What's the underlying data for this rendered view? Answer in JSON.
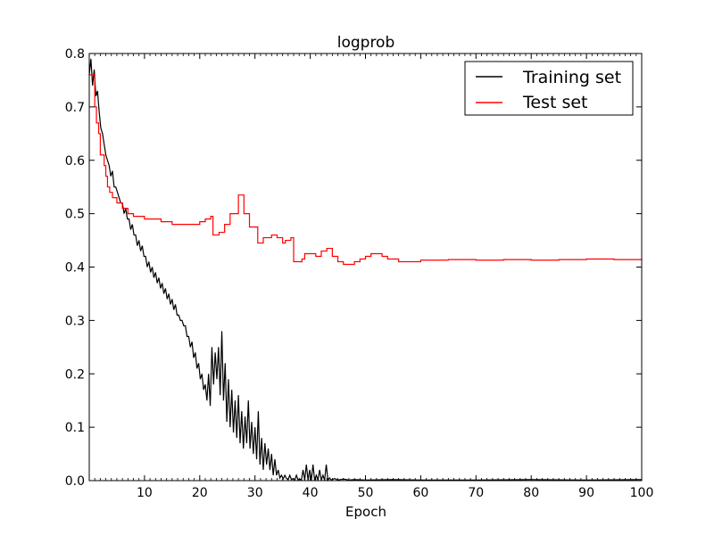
{
  "chart_data": {
    "type": "line",
    "title": "logprob",
    "xlabel": "Epoch",
    "ylabel": "",
    "xlim": [
      0,
      100
    ],
    "ylim": [
      0.0,
      0.8
    ],
    "x_ticks": [
      10,
      20,
      30,
      40,
      50,
      60,
      70,
      80,
      90,
      100
    ],
    "x_tick_labels": [
      "10",
      "20",
      "30",
      "40",
      "50",
      "60",
      "70",
      "80",
      "90",
      "100"
    ],
    "y_ticks": [
      0.0,
      0.1,
      0.2,
      0.3,
      0.4,
      0.5,
      0.6,
      0.7,
      0.8
    ],
    "y_tick_labels": [
      "0.0",
      "0.1",
      "0.2",
      "0.3",
      "0.4",
      "0.5",
      "0.6",
      "0.7",
      "0.8"
    ],
    "grid": false,
    "legend_position": "top-right",
    "series": [
      {
        "name": "Training set",
        "color": "#000000",
        "step": false,
        "points": [
          [
            0.0,
            0.76
          ],
          [
            0.3,
            0.79
          ],
          [
            0.6,
            0.74
          ],
          [
            0.9,
            0.77
          ],
          [
            1.2,
            0.72
          ],
          [
            1.5,
            0.73
          ],
          [
            1.8,
            0.69
          ],
          [
            2.1,
            0.66
          ],
          [
            2.4,
            0.65
          ],
          [
            2.7,
            0.63
          ],
          [
            3.0,
            0.61
          ],
          [
            3.3,
            0.6
          ],
          [
            3.6,
            0.59
          ],
          [
            3.9,
            0.57
          ],
          [
            4.2,
            0.58
          ],
          [
            4.5,
            0.55
          ],
          [
            4.8,
            0.55
          ],
          [
            5.1,
            0.54
          ],
          [
            5.4,
            0.53
          ],
          [
            5.7,
            0.52
          ],
          [
            6.0,
            0.52
          ],
          [
            6.3,
            0.5
          ],
          [
            6.6,
            0.51
          ],
          [
            6.9,
            0.49
          ],
          [
            7.2,
            0.49
          ],
          [
            7.5,
            0.47
          ],
          [
            7.8,
            0.48
          ],
          [
            8.1,
            0.46
          ],
          [
            8.4,
            0.46
          ],
          [
            8.7,
            0.44
          ],
          [
            9.0,
            0.45
          ],
          [
            9.3,
            0.43
          ],
          [
            9.6,
            0.44
          ],
          [
            9.9,
            0.42
          ],
          [
            10.2,
            0.42
          ],
          [
            10.5,
            0.4
          ],
          [
            10.8,
            0.41
          ],
          [
            11.1,
            0.39
          ],
          [
            11.4,
            0.4
          ],
          [
            11.7,
            0.38
          ],
          [
            12.0,
            0.39
          ],
          [
            12.3,
            0.37
          ],
          [
            12.6,
            0.38
          ],
          [
            12.9,
            0.36
          ],
          [
            13.2,
            0.37
          ],
          [
            13.5,
            0.35
          ],
          [
            13.8,
            0.36
          ],
          [
            14.1,
            0.34
          ],
          [
            14.4,
            0.35
          ],
          [
            14.7,
            0.33
          ],
          [
            15.0,
            0.34
          ],
          [
            15.3,
            0.32
          ],
          [
            15.6,
            0.33
          ],
          [
            15.9,
            0.31
          ],
          [
            16.2,
            0.31
          ],
          [
            16.5,
            0.3
          ],
          [
            16.8,
            0.3
          ],
          [
            17.1,
            0.29
          ],
          [
            17.4,
            0.29
          ],
          [
            17.7,
            0.27
          ],
          [
            18.0,
            0.27
          ],
          [
            18.3,
            0.25
          ],
          [
            18.6,
            0.26
          ],
          [
            18.9,
            0.23
          ],
          [
            19.2,
            0.24
          ],
          [
            19.5,
            0.21
          ],
          [
            19.8,
            0.22
          ],
          [
            20.1,
            0.19
          ],
          [
            20.4,
            0.2
          ],
          [
            20.7,
            0.17
          ],
          [
            21.0,
            0.18
          ],
          [
            21.3,
            0.15
          ],
          [
            21.6,
            0.2
          ],
          [
            21.9,
            0.14
          ],
          [
            22.2,
            0.25
          ],
          [
            22.5,
            0.18
          ],
          [
            22.8,
            0.24
          ],
          [
            23.1,
            0.19
          ],
          [
            23.4,
            0.25
          ],
          [
            23.7,
            0.16
          ],
          [
            24.0,
            0.28
          ],
          [
            24.3,
            0.15
          ],
          [
            24.6,
            0.22
          ],
          [
            24.9,
            0.11
          ],
          [
            25.2,
            0.19
          ],
          [
            25.5,
            0.1
          ],
          [
            25.8,
            0.17
          ],
          [
            26.1,
            0.09
          ],
          [
            26.4,
            0.15
          ],
          [
            26.7,
            0.08
          ],
          [
            27.0,
            0.16
          ],
          [
            27.3,
            0.07
          ],
          [
            27.6,
            0.13
          ],
          [
            27.9,
            0.06
          ],
          [
            28.2,
            0.12
          ],
          [
            28.5,
            0.07
          ],
          [
            28.8,
            0.15
          ],
          [
            29.1,
            0.06
          ],
          [
            29.4,
            0.11
          ],
          [
            29.7,
            0.05
          ],
          [
            30.0,
            0.1
          ],
          [
            30.3,
            0.04
          ],
          [
            30.6,
            0.13
          ],
          [
            30.9,
            0.03
          ],
          [
            31.2,
            0.08
          ],
          [
            31.5,
            0.02
          ],
          [
            31.8,
            0.07
          ],
          [
            32.1,
            0.03
          ],
          [
            32.4,
            0.06
          ],
          [
            32.7,
            0.02
          ],
          [
            33.0,
            0.05
          ],
          [
            33.3,
            0.01
          ],
          [
            33.6,
            0.04
          ],
          [
            33.9,
            0.01
          ],
          [
            34.2,
            0.02
          ],
          [
            34.5,
            0.005
          ],
          [
            34.8,
            0.01
          ],
          [
            35.1,
            0.003
          ],
          [
            35.4,
            0.01
          ],
          [
            35.7,
            0.004
          ],
          [
            36.0,
            0.002
          ],
          [
            36.3,
            0.01
          ],
          [
            36.6,
            0.002
          ],
          [
            36.9,
            0.004
          ],
          [
            37.2,
            0.001
          ],
          [
            37.5,
            0.01
          ],
          [
            37.8,
            0.001
          ],
          [
            38.1,
            0.003
          ],
          [
            38.4,
            0.001
          ],
          [
            38.7,
            0.02
          ],
          [
            39.0,
            0.001
          ],
          [
            39.3,
            0.03
          ],
          [
            39.6,
            0.001
          ],
          [
            39.9,
            0.02
          ],
          [
            40.2,
            0.001
          ],
          [
            40.5,
            0.03
          ],
          [
            40.8,
            0.001
          ],
          [
            41.1,
            0.01
          ],
          [
            41.4,
            0.001
          ],
          [
            41.7,
            0.02
          ],
          [
            42.0,
            0.001
          ],
          [
            42.3,
            0.01
          ],
          [
            42.6,
            0.001
          ],
          [
            42.9,
            0.03
          ],
          [
            43.2,
            0.001
          ],
          [
            43.5,
            0.005
          ],
          [
            43.8,
            0.001
          ],
          [
            44.4,
            0.004
          ],
          [
            45.0,
            0.001
          ],
          [
            46.0,
            0.003
          ],
          [
            47.0,
            0.001
          ],
          [
            48.0,
            0.002
          ],
          [
            50.0,
            0.001
          ],
          [
            55.0,
            0.002
          ],
          [
            60.0,
            0.001
          ],
          [
            70.0,
            0.001
          ],
          [
            80.0,
            0.002
          ],
          [
            90.0,
            0.001
          ],
          [
            100.0,
            0.002
          ]
        ]
      },
      {
        "name": "Test set",
        "color": "#ff0000",
        "step": true,
        "points": [
          [
            0.0,
            0.76
          ],
          [
            1.0,
            0.7
          ],
          [
            1.3,
            0.67
          ],
          [
            1.7,
            0.65
          ],
          [
            2.0,
            0.61
          ],
          [
            2.7,
            0.59
          ],
          [
            3.0,
            0.57
          ],
          [
            3.3,
            0.55
          ],
          [
            3.7,
            0.54
          ],
          [
            4.2,
            0.53
          ],
          [
            5.0,
            0.52
          ],
          [
            6.0,
            0.51
          ],
          [
            7.0,
            0.5
          ],
          [
            8.0,
            0.495
          ],
          [
            10.0,
            0.49
          ],
          [
            13.0,
            0.485
          ],
          [
            15.0,
            0.48
          ],
          [
            20.0,
            0.485
          ],
          [
            21.0,
            0.49
          ],
          [
            22.0,
            0.495
          ],
          [
            22.4,
            0.46
          ],
          [
            23.5,
            0.465
          ],
          [
            24.5,
            0.48
          ],
          [
            25.5,
            0.5
          ],
          [
            27.0,
            0.535
          ],
          [
            28.0,
            0.5
          ],
          [
            29.0,
            0.475
          ],
          [
            30.5,
            0.445
          ],
          [
            31.5,
            0.455
          ],
          [
            33.0,
            0.46
          ],
          [
            34.0,
            0.455
          ],
          [
            35.0,
            0.445
          ],
          [
            35.5,
            0.45
          ],
          [
            36.5,
            0.455
          ],
          [
            37.0,
            0.41
          ],
          [
            38.5,
            0.415
          ],
          [
            39.0,
            0.425
          ],
          [
            41.0,
            0.42
          ],
          [
            42.0,
            0.43
          ],
          [
            43.0,
            0.435
          ],
          [
            44.0,
            0.42
          ],
          [
            45.0,
            0.41
          ],
          [
            45.5,
            0.41
          ],
          [
            46.0,
            0.405
          ],
          [
            48.0,
            0.41
          ],
          [
            49.0,
            0.415
          ],
          [
            50.0,
            0.42
          ],
          [
            51.0,
            0.425
          ],
          [
            53.0,
            0.42
          ],
          [
            54.0,
            0.415
          ],
          [
            56.0,
            0.41
          ],
          [
            60.0,
            0.413
          ],
          [
            65.0,
            0.414
          ],
          [
            70.0,
            0.413
          ],
          [
            75.0,
            0.414
          ],
          [
            80.0,
            0.413
          ],
          [
            85.0,
            0.414
          ],
          [
            90.0,
            0.415
          ],
          [
            95.0,
            0.414
          ],
          [
            100.0,
            0.413
          ]
        ]
      }
    ]
  }
}
